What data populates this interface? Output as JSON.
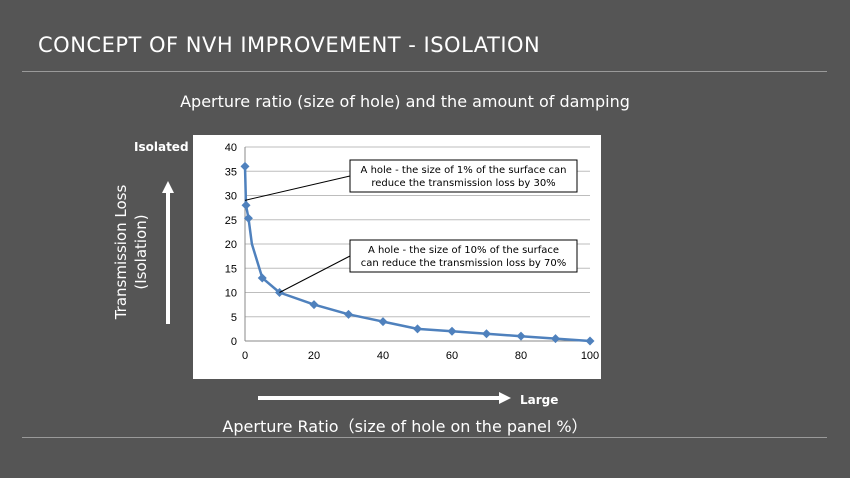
{
  "slide": {
    "title": "CONCEPT OF NVH IMPROVEMENT - ISOLATION",
    "subtitle": "Aperture ratio (size of hole) and the amount of damping",
    "isolated_label": "Isolated",
    "large_label": "Large",
    "ylabel_line1": "Transmission Loss",
    "ylabel_line2": "(Isolation)",
    "xlabel": "Aperture Ratio（size of hole on the panel %）"
  },
  "colors": {
    "background": "#555555",
    "series": "#4f81bd",
    "plot_bg": "#ffffff"
  },
  "chart_data": {
    "type": "line",
    "x": [
      0,
      0.3,
      1,
      2,
      5,
      10,
      20,
      30,
      40,
      50,
      60,
      70,
      80,
      90,
      100
    ],
    "series": [
      {
        "values": [
          36,
          28,
          25.3,
          20,
          13,
          10,
          7.5,
          5.5,
          4,
          2.5,
          2,
          1.5,
          1,
          0.5,
          0
        ]
      }
    ],
    "marker_x": [
      0,
      0.3,
      1,
      5,
      10,
      20,
      30,
      40,
      50,
      60,
      70,
      80,
      90,
      100
    ],
    "xlim": [
      0,
      100
    ],
    "ylim": [
      0,
      40
    ],
    "xticks": [
      "0",
      "20",
      "40",
      "60",
      "80",
      "100"
    ],
    "yticks": [
      "0",
      "5",
      "10",
      "15",
      "20",
      "25",
      "30",
      "35",
      "40"
    ],
    "grid": true,
    "annotations": [
      {
        "line1": "A hole - the size of 1% of the surface can",
        "line2": "reduce the transmission loss  by 30%",
        "point": [
          0,
          29
        ]
      },
      {
        "line1": "A hole - the size of 10% of the surface",
        "line2": "can reduce the transmission loss  by 70%",
        "point": [
          10,
          10
        ]
      }
    ]
  }
}
